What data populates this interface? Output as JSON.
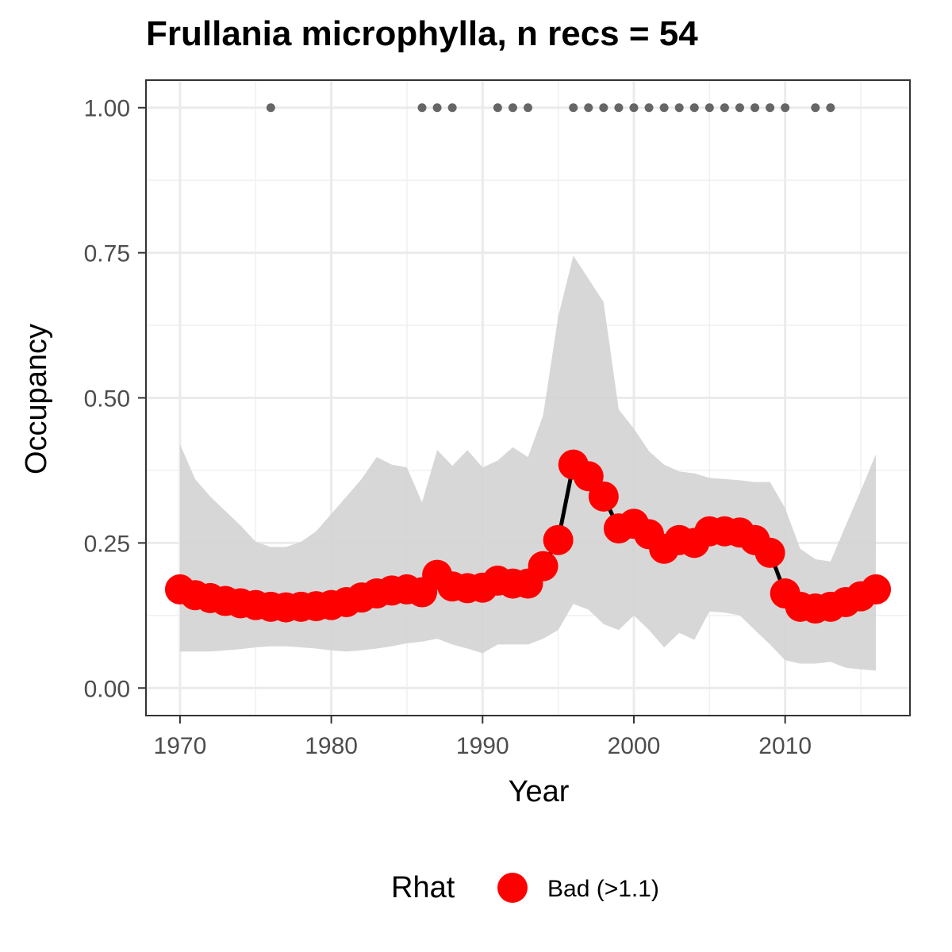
{
  "chart_data": {
    "type": "line",
    "title": "Frullania microphylla, n recs = 54",
    "xlabel": "Year",
    "ylabel": "Occupancy",
    "xlim": [
      1967.75,
      2018.25
    ],
    "ylim": [
      -0.0475,
      1.0475
    ],
    "xticks": [
      1970,
      1980,
      1990,
      2000,
      2010
    ],
    "yticks": [
      0.0,
      0.25,
      0.5,
      0.75,
      1.0
    ],
    "ytick_labels": [
      "0.00",
      "0.25",
      "0.50",
      "0.75",
      "1.00"
    ],
    "grid": true,
    "legend_position": "bottom",
    "legend": {
      "title": "Rhat",
      "entries": [
        {
          "label": "Bad (>1.1)",
          "color": "#ff0000"
        }
      ]
    },
    "colors": {
      "points": "#ff0000",
      "line": "#000000",
      "ribbon": "#d3d3d3",
      "records": "#666666"
    },
    "series": {
      "x": [
        1970,
        1971,
        1972,
        1973,
        1974,
        1975,
        1976,
        1977,
        1978,
        1979,
        1980,
        1981,
        1982,
        1983,
        1984,
        1985,
        1986,
        1987,
        1988,
        1989,
        1990,
        1991,
        1992,
        1993,
        1994,
        1995,
        1996,
        1997,
        1998,
        1999,
        2000,
        2001,
        2002,
        2003,
        2004,
        2005,
        2006,
        2007,
        2008,
        2009,
        2010,
        2011,
        2012,
        2013,
        2014,
        2015,
        2016
      ],
      "mean": [
        0.17,
        0.16,
        0.155,
        0.15,
        0.146,
        0.143,
        0.14,
        0.139,
        0.14,
        0.141,
        0.143,
        0.148,
        0.156,
        0.163,
        0.168,
        0.17,
        0.165,
        0.195,
        0.175,
        0.172,
        0.173,
        0.185,
        0.18,
        0.18,
        0.21,
        0.255,
        0.385,
        0.365,
        0.33,
        0.275,
        0.283,
        0.265,
        0.24,
        0.255,
        0.25,
        0.27,
        0.27,
        0.268,
        0.255,
        0.233,
        0.163,
        0.14,
        0.137,
        0.14,
        0.148,
        0.158,
        0.17
      ],
      "upper": [
        0.42,
        0.36,
        0.33,
        0.305,
        0.28,
        0.252,
        0.243,
        0.243,
        0.252,
        0.27,
        0.3,
        0.33,
        0.36,
        0.398,
        0.385,
        0.38,
        0.32,
        0.41,
        0.383,
        0.41,
        0.38,
        0.392,
        0.415,
        0.398,
        0.47,
        0.64,
        0.745,
        0.705,
        0.665,
        0.48,
        0.447,
        0.408,
        0.385,
        0.373,
        0.37,
        0.362,
        0.36,
        0.358,
        0.355,
        0.355,
        0.31,
        0.24,
        0.222,
        0.218,
        0.28,
        0.34,
        0.403
      ],
      "lower": [
        0.063,
        0.063,
        0.063,
        0.065,
        0.067,
        0.07,
        0.072,
        0.072,
        0.07,
        0.068,
        0.065,
        0.063,
        0.065,
        0.068,
        0.072,
        0.077,
        0.08,
        0.085,
        0.075,
        0.068,
        0.06,
        0.075,
        0.075,
        0.075,
        0.085,
        0.1,
        0.145,
        0.135,
        0.11,
        0.1,
        0.125,
        0.1,
        0.07,
        0.095,
        0.083,
        0.132,
        0.13,
        0.125,
        0.1,
        0.075,
        0.048,
        0.042,
        0.042,
        0.045,
        0.035,
        0.032,
        0.03
      ]
    },
    "record_years": [
      1976,
      1986,
      1987,
      1988,
      1991,
      1992,
      1993,
      1996,
      1997,
      1998,
      1999,
      2000,
      2001,
      2002,
      2003,
      2004,
      2005,
      2006,
      2007,
      2008,
      2009,
      2010,
      2012,
      2013
    ]
  }
}
